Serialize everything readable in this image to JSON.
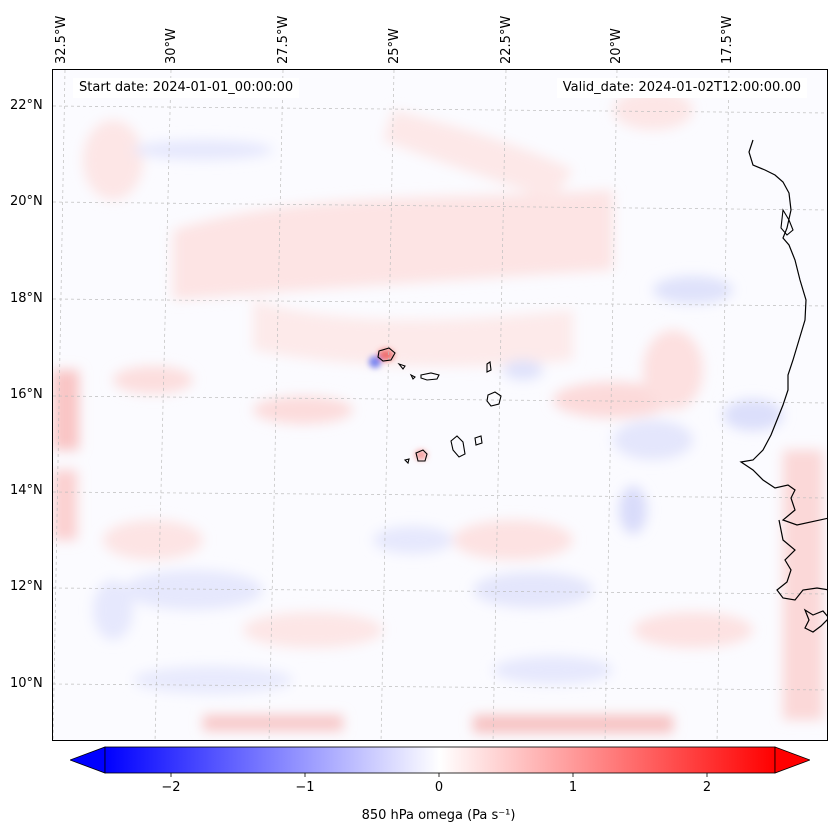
{
  "map": {
    "start_label": "Start date: 2024-01-01_00:00:00",
    "valid_label": "Valid_date: 2024-01-02T12:00:00.00",
    "longitude_labels": [
      "32.5°W",
      "30°W",
      "27.5°W",
      "25°W",
      "22.5°W",
      "20°W",
      "17.5°W"
    ],
    "latitude_labels": [
      "22°N",
      "20°N",
      "18°N",
      "16°N",
      "14°N",
      "12°N",
      "10°N"
    ],
    "features": [
      "Cape Verde islands",
      "West African coastline",
      "850 hPa omega field"
    ]
  },
  "colorbar": {
    "label": "850 hPa omega (Pa s⁻¹)",
    "ticks": [
      "−2",
      "−1",
      "0",
      "1",
      "2"
    ],
    "min": -2.5,
    "max": 2.5,
    "low_color": "#0000ff",
    "mid_color": "#ffffff",
    "high_color": "#ff0000"
  }
}
